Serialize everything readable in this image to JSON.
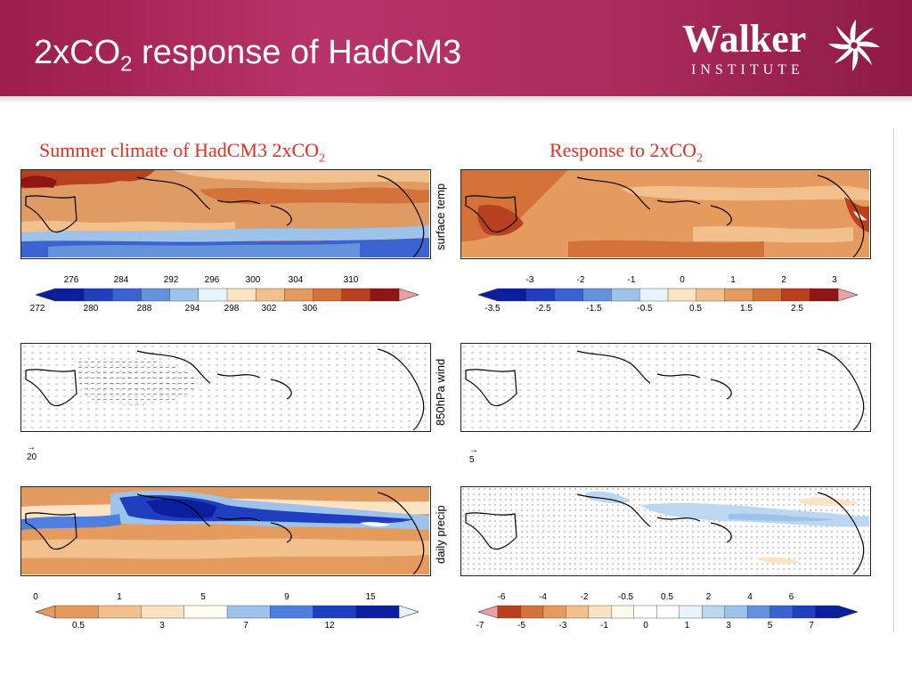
{
  "header": {
    "title_prefix": "2xCO",
    "title_sub": "2",
    "title_suffix": " response of HadCM3",
    "logo_word": "Walker",
    "logo_sub": "INSTITUTE"
  },
  "columns": {
    "left_prefix": "Summer climate of HadCM3 2xCO",
    "left_sub": "2",
    "right_prefix": "Response to 2xCO",
    "right_sub": "2"
  },
  "row_labels": {
    "temp": "surface temp",
    "wind": "850hPa wind",
    "precip": "daily precip"
  },
  "colorbars": {
    "temp_left": {
      "top": [
        "276",
        "284",
        "292",
        "296",
        "300",
        "304",
        "310"
      ],
      "bottom": [
        "272",
        "280",
        "288",
        "294",
        "298",
        "302",
        "306"
      ],
      "colors": [
        "#0b1f9e",
        "#1f3fc0",
        "#3a62d0",
        "#6592dc",
        "#9dc3ea",
        "#e8f4fb",
        "#fbe3c4",
        "#f2c08c",
        "#e59a5e",
        "#d4723a",
        "#b9401f",
        "#8f1512"
      ]
    },
    "temp_right": {
      "top": [
        "-3",
        "-2",
        "-1",
        "0",
        "1",
        "2",
        "3"
      ],
      "bottom": [
        "-3.5",
        "-2.5",
        "-1.5",
        "-0.5",
        "0.5",
        "1.5",
        "2.5"
      ],
      "colors": [
        "#0b1f9e",
        "#1f3fc0",
        "#3a62d0",
        "#6592dc",
        "#9dc3ea",
        "#e8f4fb",
        "#fbe3c4",
        "#f2c08c",
        "#e59a5e",
        "#d4723a",
        "#b9401f",
        "#8f1512"
      ]
    },
    "precip_left": {
      "top": [
        "0",
        "1",
        "5",
        "9",
        "15"
      ],
      "bottom": [
        "0.5",
        "3",
        "7",
        "12"
      ],
      "colors": [
        "#e59a5e",
        "#f2c08c",
        "#fbe3c4",
        "#fffdf4",
        "#9dc3ea",
        "#4d7fe0",
        "#1f3fc0",
        "#0b1f9e"
      ]
    },
    "precip_right": {
      "top": [
        "-6",
        "-4",
        "-2",
        "-0.5",
        "0.5",
        "2",
        "4",
        "6"
      ],
      "bottom": [
        "-7",
        "-5",
        "-3",
        "-1",
        "0",
        "1",
        "3",
        "5",
        "7"
      ],
      "colors": [
        "#b9401f",
        "#d4723a",
        "#e59a5e",
        "#f2c08c",
        "#fbe3c4",
        "#fffaf0",
        "#ffffff",
        "#ffffff",
        "#e8f4fb",
        "#bcd8f0",
        "#9dc3ea",
        "#6592dc",
        "#3a62d0",
        "#1f3fc0",
        "#0b1f9e"
      ]
    }
  },
  "wind_refs": {
    "left": "20",
    "right": "5"
  },
  "colors": {
    "header": "#a92a5b",
    "column_heading": "#e0301e"
  }
}
